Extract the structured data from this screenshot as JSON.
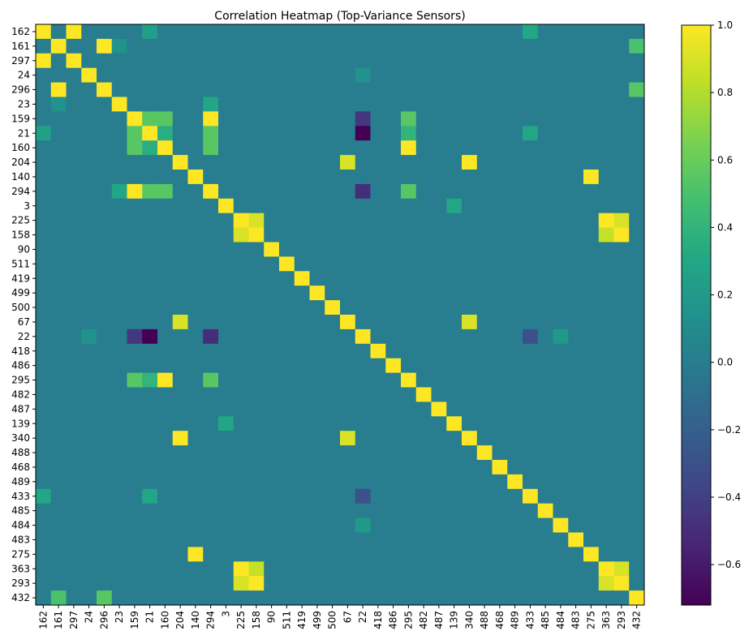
{
  "chart_data": {
    "type": "heatmap",
    "title": "Correlation Heatmap (Top-Variance Sensors)",
    "labels": [
      "162",
      "161",
      "297",
      "24",
      "296",
      "23",
      "159",
      "21",
      "160",
      "204",
      "140",
      "294",
      "3",
      "225",
      "158",
      "90",
      "511",
      "419",
      "499",
      "500",
      "67",
      "22",
      "418",
      "486",
      "295",
      "482",
      "487",
      "139",
      "340",
      "488",
      "468",
      "489",
      "433",
      "485",
      "484",
      "483",
      "275",
      "363",
      "293",
      "432"
    ],
    "value_range": [
      -0.72,
      1.0
    ],
    "colormap": "viridis",
    "colorbar_ticks": [
      -0.6,
      -0.4,
      -0.2,
      0.0,
      0.2,
      0.4,
      0.6,
      0.8,
      1.0
    ],
    "colorbar_tick_labels": [
      "−0.6",
      "−0.4",
      "−0.2",
      "0.0",
      "0.2",
      "0.4",
      "0.6",
      "0.8",
      "1.0"
    ],
    "diagonal": 1.0,
    "default_offdiagonal": 0.0,
    "notable_pairs": [
      [
        "162",
        "297",
        1.0
      ],
      [
        "162",
        "433",
        0.3
      ],
      [
        "162",
        "21",
        0.25
      ],
      [
        "161",
        "296",
        1.0
      ],
      [
        "161",
        "432",
        0.5
      ],
      [
        "161",
        "23",
        0.15
      ],
      [
        "296",
        "432",
        0.55
      ],
      [
        "23",
        "294",
        0.3
      ],
      [
        "159",
        "294",
        1.0
      ],
      [
        "159",
        "21",
        0.55
      ],
      [
        "159",
        "160",
        0.55
      ],
      [
        "159",
        "295",
        0.55
      ],
      [
        "159",
        "22",
        -0.45
      ],
      [
        "21",
        "294",
        0.55
      ],
      [
        "21",
        "160",
        0.35
      ],
      [
        "21",
        "295",
        0.4
      ],
      [
        "21",
        "433",
        0.3
      ],
      [
        "21",
        "22",
        -0.72
      ],
      [
        "160",
        "295",
        1.0
      ],
      [
        "160",
        "294",
        0.55
      ],
      [
        "204",
        "340",
        1.0
      ],
      [
        "204",
        "67",
        0.9
      ],
      [
        "140",
        "275",
        1.0
      ],
      [
        "294",
        "295",
        0.55
      ],
      [
        "294",
        "22",
        -0.5
      ],
      [
        "3",
        "139",
        0.3
      ],
      [
        "225",
        "158",
        0.9
      ],
      [
        "225",
        "363",
        1.0
      ],
      [
        "225",
        "293",
        0.9
      ],
      [
        "158",
        "363",
        0.85
      ],
      [
        "158",
        "293",
        1.0
      ],
      [
        "363",
        "293",
        0.9
      ],
      [
        "67",
        "340",
        0.9
      ],
      [
        "22",
        "433",
        -0.3
      ],
      [
        "22",
        "24",
        0.15
      ],
      [
        "22",
        "484",
        0.2
      ]
    ]
  }
}
